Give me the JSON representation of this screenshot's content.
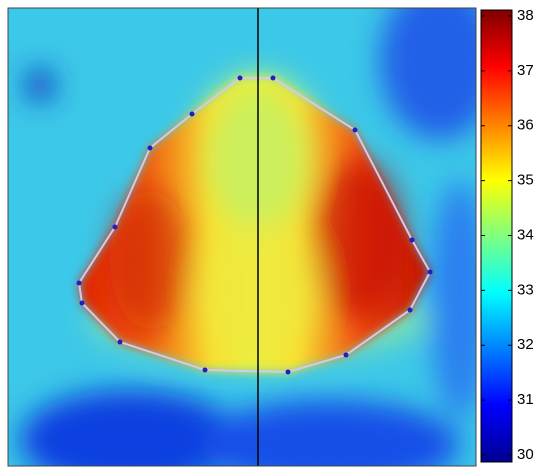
{
  "colorbar": {
    "lim": [
      30,
      38
    ],
    "ticks": [
      30,
      31,
      32,
      33,
      34,
      35,
      36,
      37,
      38
    ],
    "colormap": "jet"
  }
}
